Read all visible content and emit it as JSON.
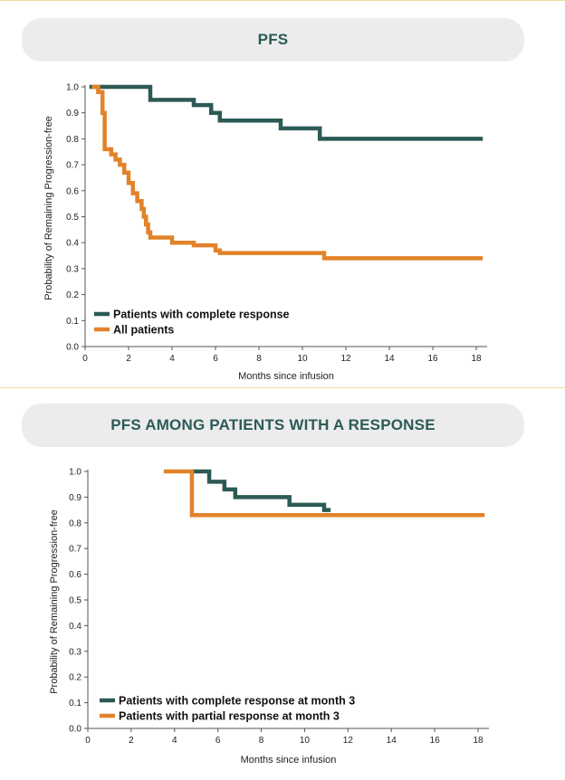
{
  "colors": {
    "complete": "#2c5a56",
    "orange": "#e2822a"
  },
  "chart_data": [
    {
      "type": "line",
      "step": true,
      "title": "PFS",
      "xlabel": "Months since infusion",
      "ylabel": "Probability of Remaining Progression-free",
      "xlim": [
        0,
        18.5
      ],
      "ylim": [
        0,
        1.0
      ],
      "xticks": [
        0,
        2,
        4,
        6,
        8,
        10,
        12,
        14,
        16,
        18
      ],
      "yticks": [
        0.0,
        0.1,
        0.2,
        0.3,
        0.4,
        0.5,
        0.6,
        0.7,
        0.8,
        0.9,
        1.0
      ],
      "legend": "bottom-left",
      "series": [
        {
          "name": "Patients with complete response",
          "color": "#2c5a56",
          "x": [
            0.2,
            3.0,
            5.0,
            5.8,
            6.2,
            9.0,
            10.8,
            18.3
          ],
          "y": [
            1.0,
            0.95,
            0.93,
            0.9,
            0.87,
            0.84,
            0.8,
            0.8
          ]
        },
        {
          "name": "All patients",
          "color": "#e2822a",
          "x": [
            0.3,
            0.6,
            0.8,
            0.9,
            1.2,
            1.4,
            1.6,
            1.8,
            2.0,
            2.2,
            2.4,
            2.6,
            2.7,
            2.8,
            2.9,
            3.0,
            4.0,
            5.0,
            6.0,
            6.2,
            11.0,
            18.3
          ],
          "y": [
            1.0,
            0.98,
            0.9,
            0.76,
            0.74,
            0.72,
            0.7,
            0.67,
            0.63,
            0.59,
            0.56,
            0.53,
            0.5,
            0.47,
            0.44,
            0.42,
            0.4,
            0.39,
            0.37,
            0.36,
            0.34,
            0.34
          ]
        }
      ]
    },
    {
      "type": "line",
      "step": true,
      "title": "PFS AMONG PATIENTS WITH A RESPONSE",
      "xlabel": "Months since infusion",
      "ylabel": "Probability of Remaining Progression-free",
      "xlim": [
        0,
        18.5
      ],
      "ylim": [
        0,
        1.0
      ],
      "xticks": [
        0,
        2,
        4,
        6,
        8,
        10,
        12,
        14,
        16,
        18
      ],
      "yticks": [
        0.0,
        0.1,
        0.2,
        0.3,
        0.4,
        0.5,
        0.6,
        0.7,
        0.8,
        0.9,
        1.0
      ],
      "legend": "bottom-left",
      "series": [
        {
          "name": "Patients with complete response at month 3",
          "color": "#2c5a56",
          "x": [
            4.8,
            5.6,
            6.3,
            6.8,
            9.3,
            10.9,
            11.2
          ],
          "y": [
            1.0,
            0.96,
            0.93,
            0.9,
            0.87,
            0.85,
            0.85
          ]
        },
        {
          "name": "Patients with partial response at month 3",
          "color": "#e2822a",
          "x": [
            3.5,
            4.8,
            18.3
          ],
          "y": [
            1.0,
            0.83,
            0.83
          ]
        }
      ]
    }
  ]
}
